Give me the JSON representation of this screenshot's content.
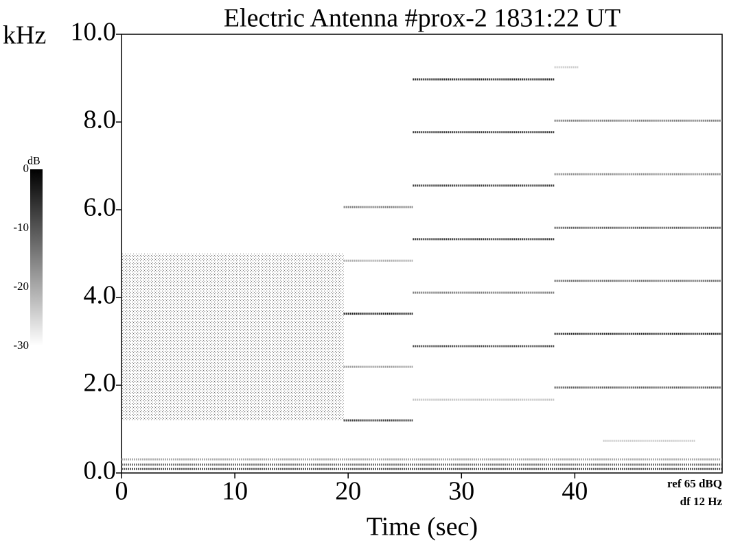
{
  "chart_data": {
    "type": "spectrogram",
    "title": "Electric Antenna #prox-2   1831:22 UT",
    "y_unit": "kHz",
    "xlabel": "Time (sec)",
    "xlim": [
      0,
      53
    ],
    "ylim": [
      0,
      10
    ],
    "xticks": [
      0,
      10,
      20,
      30,
      40
    ],
    "yticks": [
      {
        "value": 0,
        "label": "0.0"
      },
      {
        "value": 2,
        "label": "2.0"
      },
      {
        "value": 4,
        "label": "4.0"
      },
      {
        "value": 6,
        "label": "6.0"
      },
      {
        "value": 8,
        "label": "8.0"
      },
      {
        "value": 10,
        "label": "10.0"
      }
    ],
    "colorbar": {
      "label": "dB",
      "lim": [
        0,
        -30
      ],
      "ticks": [
        0,
        -10,
        -20,
        -30
      ]
    },
    "annotations": [
      "ref 65 dBQ",
      "df 12 Hz"
    ],
    "noise": {
      "x": [
        0,
        19.6
      ],
      "freq": [
        1.2,
        5.0
      ],
      "level": -18
    },
    "lines": [
      {
        "x": [
          0,
          53
        ],
        "freq": 0.09,
        "level": -12
      },
      {
        "x": [
          0,
          53
        ],
        "freq": 0.19,
        "level": -15
      },
      {
        "x": [
          0,
          53
        ],
        "freq": 0.31,
        "level": -22
      },
      {
        "x": [
          19.6,
          25.7
        ],
        "freq": 1.2,
        "level": -8
      },
      {
        "x": [
          19.6,
          25.7
        ],
        "freq": 2.42,
        "level": -20
      },
      {
        "x": [
          19.6,
          25.7
        ],
        "freq": 3.63,
        "level": -4
      },
      {
        "x": [
          19.6,
          25.7
        ],
        "freq": 4.84,
        "level": -22
      },
      {
        "x": [
          19.6,
          25.7
        ],
        "freq": 6.06,
        "level": -16
      },
      {
        "x": [
          25.7,
          38.2
        ],
        "freq": 1.67,
        "level": -25
      },
      {
        "x": [
          25.7,
          38.2
        ],
        "freq": 2.89,
        "level": -10
      },
      {
        "x": [
          25.7,
          38.2
        ],
        "freq": 4.11,
        "level": -16
      },
      {
        "x": [
          25.7,
          38.2
        ],
        "freq": 5.33,
        "level": -8
      },
      {
        "x": [
          25.7,
          38.2
        ],
        "freq": 6.55,
        "level": -8
      },
      {
        "x": [
          25.7,
          38.2
        ],
        "freq": 7.77,
        "level": -8
      },
      {
        "x": [
          25.7,
          38.2
        ],
        "freq": 8.97,
        "level": -6
      },
      {
        "x": [
          42.5,
          50.6
        ],
        "freq": 0.73,
        "level": -26
      },
      {
        "x": [
          38.2,
          53
        ],
        "freq": 1.95,
        "level": -12
      },
      {
        "x": [
          38.2,
          53
        ],
        "freq": 3.17,
        "level": -6
      },
      {
        "x": [
          38.2,
          53
        ],
        "freq": 4.38,
        "level": -14
      },
      {
        "x": [
          38.2,
          53
        ],
        "freq": 5.59,
        "level": -12
      },
      {
        "x": [
          38.2,
          53
        ],
        "freq": 6.81,
        "level": -18
      },
      {
        "x": [
          38.2,
          53
        ],
        "freq": 8.03,
        "level": -16
      },
      {
        "x": [
          38.2,
          40.3
        ],
        "freq": 9.25,
        "level": -26
      }
    ]
  }
}
